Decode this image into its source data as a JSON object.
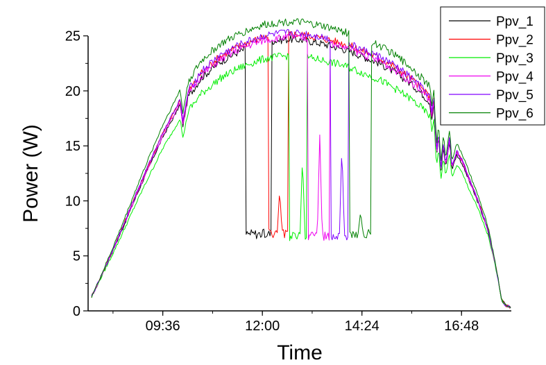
{
  "chart_data": {
    "type": "line",
    "title": "",
    "xlabel": "Time",
    "ylabel": "Power (W)",
    "x_ticks": [
      {
        "value": "09:36",
        "hours": 9.6
      },
      {
        "value": "12:00",
        "hours": 12.0
      },
      {
        "value": "14:24",
        "hours": 14.4
      },
      {
        "value": "16:48",
        "hours": 16.8
      }
    ],
    "y_ticks": [
      0,
      5,
      10,
      15,
      20,
      25
    ],
    "xlim": [
      "07:48",
      "18:00"
    ],
    "ylim": [
      0,
      27
    ],
    "grid": false,
    "legend_position": "top-right",
    "baseline": [
      [
        "07:53",
        1.3
      ],
      [
        "08:06",
        3.0
      ],
      [
        "08:19",
        4.8
      ],
      [
        "08:38",
        7.5
      ],
      [
        "08:58",
        10.5
      ],
      [
        "09:17",
        13.2
      ],
      [
        "09:36",
        15.8
      ],
      [
        "09:55",
        18.0
      ],
      [
        "10:01",
        18.8
      ],
      [
        "10:05",
        16.8
      ],
      [
        "10:13",
        19.5
      ],
      [
        "10:32",
        21.2
      ],
      [
        "10:58",
        22.6
      ],
      [
        "11:24",
        23.5
      ],
      [
        "11:43",
        24.0
      ],
      [
        "12:02",
        24.4
      ],
      [
        "12:22",
        24.6
      ],
      [
        "12:41",
        24.7
      ],
      [
        "13:00",
        24.6
      ],
      [
        "13:26",
        24.3
      ],
      [
        "13:52",
        23.9
      ],
      [
        "14:11",
        23.5
      ],
      [
        "14:30",
        23.0
      ],
      [
        "14:50",
        22.5
      ],
      [
        "15:14",
        21.6
      ],
      [
        "15:36",
        20.6
      ],
      [
        "15:50",
        19.8
      ],
      [
        "16:02",
        19.0
      ],
      [
        "16:05",
        17.5
      ],
      [
        "16:08",
        18.8
      ],
      [
        "16:12",
        14.0
      ],
      [
        "16:15",
        16.0
      ],
      [
        "16:18",
        12.5
      ],
      [
        "16:22",
        15.0
      ],
      [
        "16:25",
        13.0
      ],
      [
        "16:31",
        15.5
      ],
      [
        "16:34",
        12.8
      ],
      [
        "16:41",
        14.2
      ],
      [
        "16:48",
        13.5
      ],
      [
        "17:01",
        11.5
      ],
      [
        "17:14",
        9.5
      ],
      [
        "17:26",
        7.3
      ],
      [
        "17:36",
        4.5
      ],
      [
        "17:42",
        2.5
      ],
      [
        "17:46",
        1.0
      ],
      [
        "17:52",
        0.5
      ],
      [
        "18:00",
        0.3
      ]
    ],
    "series": [
      {
        "name": "Ppv_1",
        "color": "#000000",
        "offset": 0.0,
        "drop": [
          "11:34",
          "12:14"
        ],
        "drop_level": 7.0,
        "spikes": []
      },
      {
        "name": "Ppv_2",
        "color": "#ff0000",
        "offset": 0.5,
        "drop": [
          "12:07",
          "12:38"
        ],
        "drop_level": 7.0,
        "spikes": [
          [
            "12:25",
            11.0
          ]
        ]
      },
      {
        "name": "Ppv_3",
        "color": "#00ee00",
        "offset": -1.5,
        "drop": [
          "12:38",
          "13:05"
        ],
        "drop_level": 6.8,
        "spikes": [
          [
            "12:58",
            14.0
          ]
        ]
      },
      {
        "name": "Ppv_4",
        "color": "#ee00ee",
        "offset": 0.2,
        "drop": [
          "13:05",
          "13:38"
        ],
        "drop_level": 6.8,
        "spikes": [
          [
            "13:23",
            16.0
          ]
        ]
      },
      {
        "name": "Ppv_5",
        "color": "#8000ff",
        "offset": 0.6,
        "drop": [
          "13:38",
          "14:05"
        ],
        "drop_level": 6.8,
        "spikes": [
          [
            "13:55",
            15.0
          ]
        ]
      },
      {
        "name": "Ppv_6",
        "color": "#008000",
        "offset": 1.6,
        "drop": [
          "14:05",
          "14:38"
        ],
        "drop_level": 7.0,
        "spikes": [
          [
            "14:22",
            9.0
          ]
        ]
      }
    ]
  }
}
